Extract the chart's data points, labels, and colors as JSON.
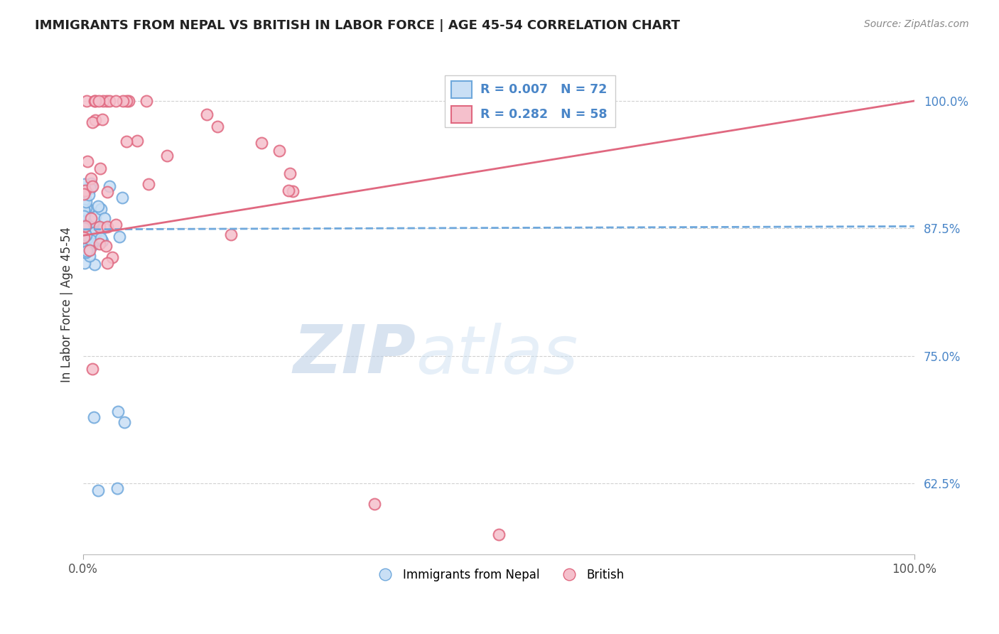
{
  "title": "IMMIGRANTS FROM NEPAL VS BRITISH IN LABOR FORCE | AGE 45-54 CORRELATION CHART",
  "source": "Source: ZipAtlas.com",
  "ylabel": "In Labor Force | Age 45-54",
  "xlim": [
    0.0,
    1.0
  ],
  "ylim": [
    0.555,
    1.045
  ],
  "yticks": [
    0.625,
    0.75,
    0.875,
    1.0
  ],
  "ytick_labels": [
    "62.5%",
    "75.0%",
    "87.5%",
    "100.0%"
  ],
  "xtick_labels": [
    "0.0%",
    "100.0%"
  ],
  "nepal_color": "#6fa8dc",
  "british_color": "#e06880",
  "nepal_face": "#c9dff5",
  "british_face": "#f5c0cc",
  "nepal_R": 0.007,
  "nepal_N": 72,
  "british_R": 0.282,
  "british_N": 58,
  "watermark_zip": "ZIP",
  "watermark_atlas": "atlas",
  "legend_nepal_label": "Immigrants from Nepal",
  "legend_british_label": "British",
  "background_color": "#ffffff",
  "grid_color": "#cccccc",
  "title_color": "#222222",
  "source_color": "#888888",
  "tick_color": "#4a86c8",
  "ytick_color": "#4a86c8"
}
